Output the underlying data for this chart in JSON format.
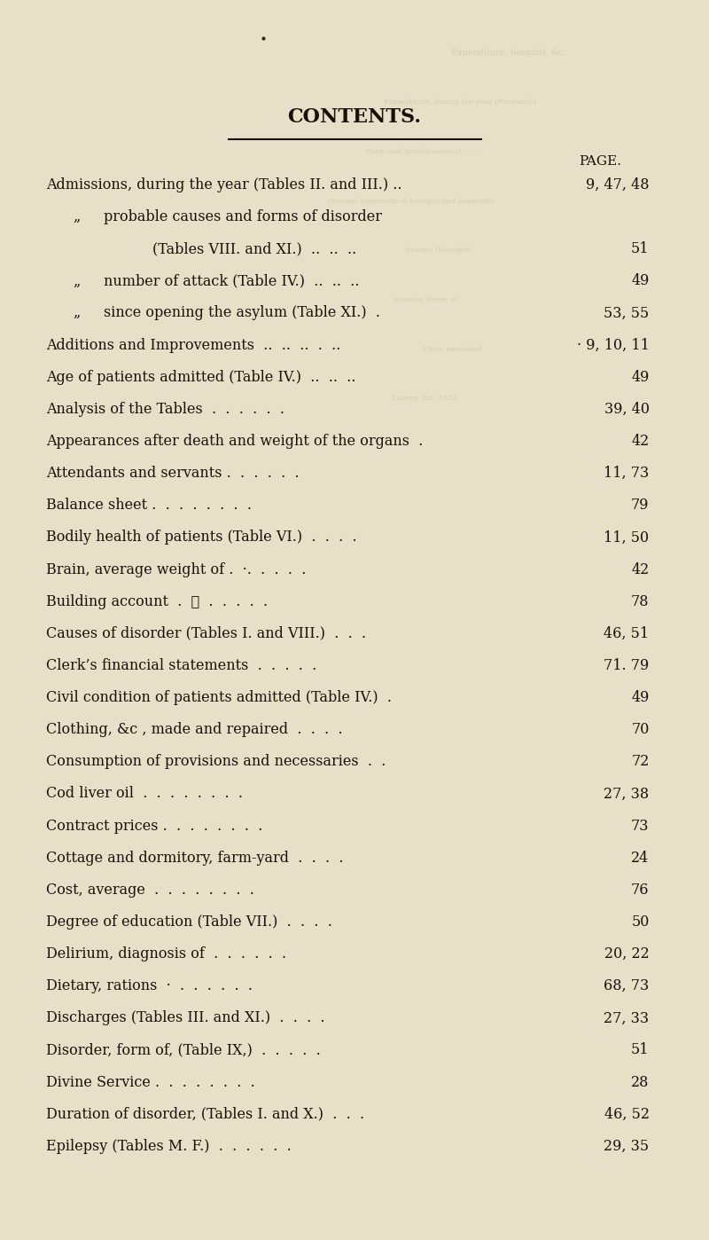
{
  "bg_color": "#e8dfc8",
  "title": "CONTENTS.",
  "page_label": "PAGE.",
  "entries": [
    {
      "text": "Admissions, during the year (Tables II. and III.) ..",
      "page": "9, 47, 48",
      "indent": 0
    },
    {
      "text": "„     probable causes and forms of disorder",
      "page": "",
      "indent": 1
    },
    {
      "text": "        (Tables VIII. and XI.)  ..  ..  ..",
      "page": "51",
      "indent": 2
    },
    {
      "text": "„     number of attack (Table IV.)  ..  ..  ..",
      "page": "49",
      "indent": 1
    },
    {
      "text": "„     since opening the asylum (Table XI.)  .",
      "page": "53, 55",
      "indent": 1
    },
    {
      "text": "Additions and Improvements  ..  ..  ..  .  ..",
      "page": "· 9, 10, 11",
      "indent": 0
    },
    {
      "text": "Age of patients admitted (Table IV.)  ..  ..  ..",
      "page": "49",
      "indent": 0
    },
    {
      "text": "Analysis of the Tables  .  .  .  .  .  .",
      "page": "39, 40",
      "indent": 0
    },
    {
      "text": "Appearances after death and weight of the organs  .",
      "page": "42",
      "indent": 0
    },
    {
      "text": "Attendants and servants .  .  .  .  .  .",
      "page": "11, 73",
      "indent": 0
    },
    {
      "text": "Balance sheet .  .  .  .  .  .  .  .",
      "page": "79",
      "indent": 0
    },
    {
      "text": "Bodily health of patients (Table VI.)  .  .  .  .",
      "page": "11, 50",
      "indent": 0
    },
    {
      "text": "Brain, average weight of .  ·.  .  .  .  .",
      "page": "42",
      "indent": 0
    },
    {
      "text": "Building account  .  ✱  .  .  .  .  .",
      "page": "78",
      "indent": 0
    },
    {
      "text": "Causes of disorder (Tables I. and VIII.)  .  .  .",
      "page": "46, 51",
      "indent": 0
    },
    {
      "text": "Clerk’s financial statements  .  .  .  .  .",
      "page": "71. 79",
      "indent": 0
    },
    {
      "text": "Civil condition of patients admitted (Table IV.)  .",
      "page": "49",
      "indent": 0
    },
    {
      "text": "Clothing, &c , made and repaired  .  .  .  .",
      "page": "70",
      "indent": 0
    },
    {
      "text": "Consumption of provisions and necessaries  .  .",
      "page": "72",
      "indent": 0
    },
    {
      "text": "Cod liver oil  .  .  .  .  .  .  .  .",
      "page": "27, 38",
      "indent": 0
    },
    {
      "text": "Contract prices .  .  .  .  .  .  .  .",
      "page": "73",
      "indent": 0
    },
    {
      "text": "Cottage and dormitory, farm-yard  .  .  .  .",
      "page": "24",
      "indent": 0
    },
    {
      "text": "Cost, average  .  .  .  .  .  .  .  .",
      "page": "76",
      "indent": 0
    },
    {
      "text": "Degree of education (Table VII.)  .  .  .  .",
      "page": "50",
      "indent": 0
    },
    {
      "text": "Delirium, diagnosis of  .  .  .  .  .  .",
      "page": "20, 22",
      "indent": 0
    },
    {
      "text": "Dietary, rations  ·  .  .  .  .  .  .",
      "page": "68, 73",
      "indent": 0
    },
    {
      "text": "Discharges (Tables III. and XI.)  .  .  .  .",
      "page": "27, 33",
      "indent": 0
    },
    {
      "text": "Disorder, form of, (Table IX,)  .  .  .  .  .",
      "page": "51",
      "indent": 0
    },
    {
      "text": "Divine Service .  .  .  .  .  .  .  .",
      "page": "28",
      "indent": 0
    },
    {
      "text": "Duration of disorder, (Tables I. and X.)  .  .  .",
      "page": "46, 52",
      "indent": 0
    },
    {
      "text": "Epilepsy (Tables M. F.)  .  .  .  .  .  .",
      "page": "29, 35",
      "indent": 0
    }
  ],
  "text_color": "#1a1008",
  "faded_color": "#b0a080",
  "font_size": 11.5,
  "title_font_size": 16
}
